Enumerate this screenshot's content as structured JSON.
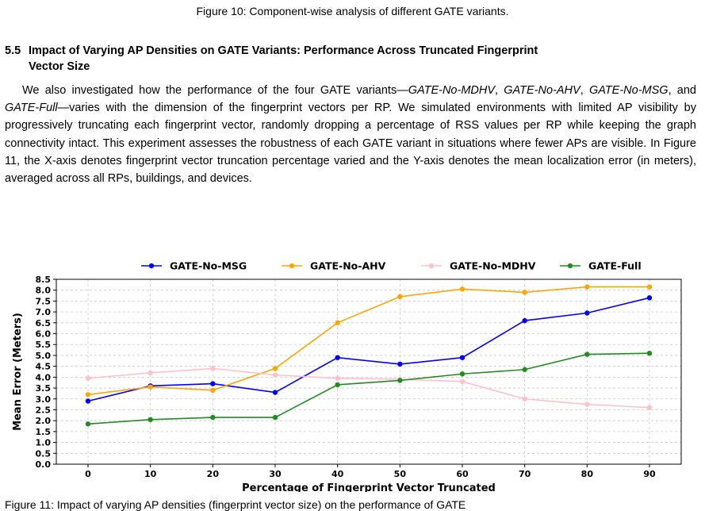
{
  "caption_top": "Figure 10: Component-wise analysis of different GATE variants.",
  "section": {
    "number": "5.5",
    "title_line1": "Impact of Varying AP Densities on GATE Variants: Performance Across Truncated Fingerprint",
    "title_line2": "Vector Size"
  },
  "paragraph": {
    "t1": "We also investigated how the performance of the four GATE variants—",
    "v1": "GATE-No-MDHV",
    "s1": ", ",
    "v2": "GATE-No-AHV",
    "s2": ", ",
    "v3": "GATE-No-MSG",
    "s3": ", and ",
    "v4": "GATE-Full",
    "t2": "—varies with the dimension of the fingerprint vectors per RP. We simulated environments with limited AP visibility by progressively truncating each fingerprint vector, randomly dropping a percentage of RSS values per RP while keeping the graph connectivity intact. This experiment assesses the robustness of each GATE variant in situations where fewer APs are visible. In Figure 11, the X-axis denotes fingerprint vector truncation percentage varied and the Y-axis denotes the mean localization error (in meters), averaged across all RPs, buildings, and devices."
  },
  "caption_bottom": "Figure 11: Impact of varying AP densities (fingerprint vector size) on the performance of GATE",
  "chart_data": {
    "type": "line",
    "xlabel": "Percentage of Fingerprint Vector Truncated",
    "ylabel": "Mean Error (Meters)",
    "x": [
      0,
      10,
      20,
      30,
      40,
      50,
      60,
      70,
      80,
      90
    ],
    "x_tick_labels": [
      "0",
      "10",
      "20",
      "30",
      "40",
      "50",
      "60",
      "70",
      "80",
      "90"
    ],
    "y_tick_labels": [
      "0.0",
      "0.5",
      "1.0",
      "1.5",
      "2.0",
      "2.5",
      "3.0",
      "3.5",
      "4.0",
      "4.5",
      "5.0",
      "5.5",
      "6.0",
      "6.5",
      "7.0",
      "7.5",
      "8.0",
      "8.5"
    ],
    "ylim": [
      0,
      8.5
    ],
    "grid": true,
    "legend_position": "top",
    "series": [
      {
        "name": "GATE-No-MSG",
        "color": "#0000ff",
        "values": [
          2.9,
          3.6,
          3.7,
          3.3,
          4.9,
          4.6,
          4.9,
          6.6,
          6.95,
          7.65
        ]
      },
      {
        "name": "GATE-No-AHV",
        "color": "#ffa500",
        "values": [
          3.2,
          3.55,
          3.4,
          4.4,
          6.5,
          7.7,
          8.05,
          7.9,
          8.15,
          8.15
        ]
      },
      {
        "name": "GATE-No-MDHV",
        "color": "#ffc0cb",
        "values": [
          3.95,
          4.2,
          4.4,
          4.1,
          3.95,
          3.9,
          3.8,
          3.0,
          2.75,
          2.6
        ]
      },
      {
        "name": "GATE-Full",
        "color": "#228b22",
        "values": [
          1.85,
          2.05,
          2.15,
          2.15,
          3.65,
          3.85,
          4.15,
          4.35,
          5.05,
          5.1
        ]
      }
    ]
  }
}
